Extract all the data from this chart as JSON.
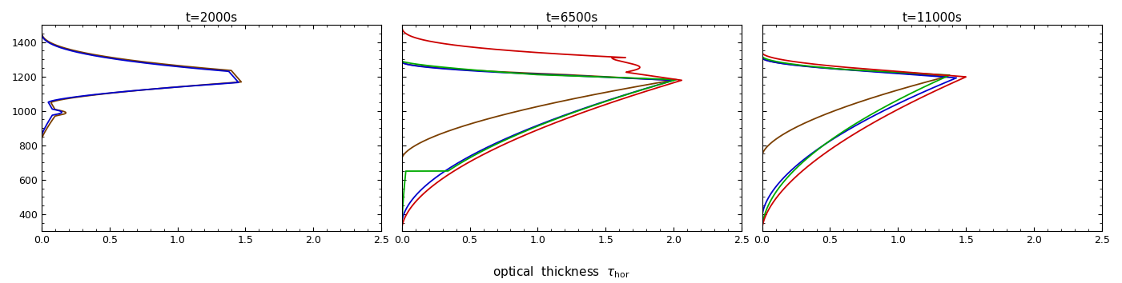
{
  "titles": [
    "t=2000s",
    "t=6500s",
    "t=11000s"
  ],
  "xlabel_text": "optical  thickness  $\\tau_{\\rm hor}$",
  "xlim": [
    0.0,
    2.5
  ],
  "ylim": [
    300,
    1500
  ],
  "yticks": [
    400,
    600,
    800,
    1000,
    1200,
    1400
  ],
  "xticks": [
    0.0,
    0.5,
    1.0,
    1.5,
    2.0,
    2.5
  ],
  "colors": {
    "blue": "#0000cc",
    "brown": "#7B3F00",
    "red": "#cc0000",
    "green": "#00aa00"
  },
  "background": "#ffffff",
  "title_fontsize": 11,
  "label_fontsize": 11,
  "linewidth": 1.3
}
